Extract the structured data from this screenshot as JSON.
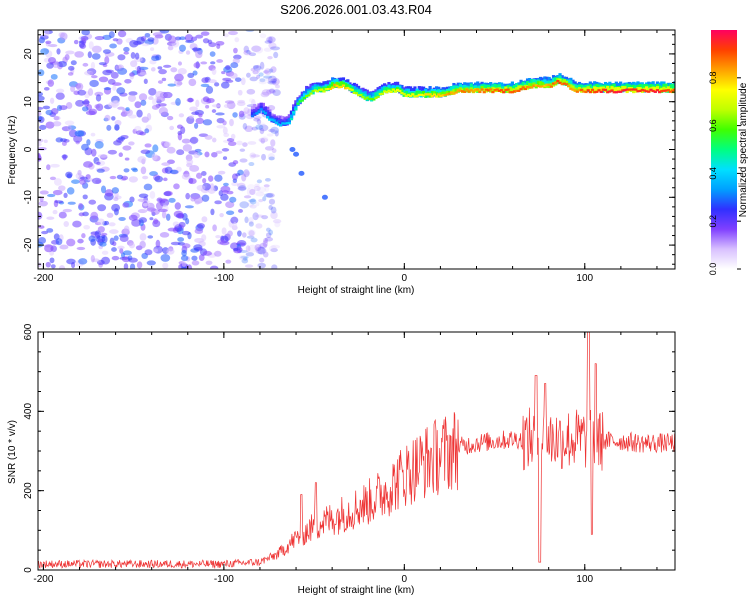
{
  "chart_data": [
    {
      "type": "heatmap",
      "title": "S206.2026.001.03.43.R04",
      "xlabel": "Height of straight line (km)",
      "ylabel": "Frequency (Hz)",
      "xlim": [
        -203,
        150
      ],
      "ylim": [
        -25,
        25
      ],
      "xticks": [
        -200,
        -100,
        0,
        100
      ],
      "yticks": [
        -20,
        -10,
        0,
        10,
        20
      ],
      "colorbar": {
        "label": "Normalized spectral amplitude",
        "range": [
          0.0,
          1.0
        ],
        "ticks": [
          0.0,
          0.2,
          0.4,
          0.6,
          0.8
        ],
        "colors": [
          "#ffffff",
          "#d8c0ff",
          "#8040ff",
          "#3030ff",
          "#00a0ff",
          "#00e0ff",
          "#00ff80",
          "#40ff00",
          "#c0ff00",
          "#ffff00",
          "#ffa000",
          "#ff4000",
          "#ff0060"
        ]
      },
      "noise_region": {
        "x_from": -203,
        "x_to": -80,
        "amplitude": [
          0.05,
          0.3
        ]
      },
      "ridge": {
        "x": [
          -85,
          -80,
          -75,
          -70,
          -65,
          -60,
          -55,
          -50,
          -45,
          -40,
          -35,
          -30,
          -25,
          -20,
          -15,
          -10,
          -5,
          0,
          10,
          20,
          30,
          40,
          50,
          60,
          70,
          75,
          80,
          85,
          90,
          95,
          100,
          110,
          120,
          130,
          140,
          150
        ],
        "freq": [
          7,
          8,
          6,
          5,
          5,
          9,
          11,
          12,
          12,
          13,
          13,
          12,
          11,
          10,
          11,
          12,
          12,
          11,
          11,
          11,
          12,
          12,
          12,
          12,
          13,
          13,
          13,
          14,
          13,
          12,
          12,
          12,
          12,
          12,
          12,
          12
        ],
        "amp": [
          0.3,
          0.35,
          0.4,
          0.35,
          0.4,
          0.5,
          0.6,
          0.65,
          0.7,
          0.8,
          0.8,
          0.7,
          0.65,
          0.6,
          0.65,
          0.7,
          0.75,
          0.7,
          0.75,
          0.8,
          0.85,
          0.85,
          0.9,
          0.9,
          0.85,
          0.8,
          0.85,
          0.9,
          0.85,
          0.85,
          0.9,
          0.95,
          0.95,
          0.95,
          0.95,
          0.9
        ]
      }
    },
    {
      "type": "line",
      "xlabel": "Height of straight line (km)",
      "ylabel": "SNR (10 * v/v)",
      "xlim": [
        -203,
        150
      ],
      "ylim": [
        0,
        600
      ],
      "xticks": [
        -200,
        -100,
        0,
        100
      ],
      "yticks": [
        0,
        200,
        400,
        600
      ],
      "series": [
        {
          "name": "SNR",
          "color": "#ee3333",
          "envelope_x": [
            -203,
            -150,
            -100,
            -80,
            -70,
            -60,
            -50,
            -40,
            -30,
            -20,
            -10,
            0,
            10,
            20,
            30,
            40,
            50,
            60,
            70,
            80,
            90,
            100,
            110,
            120,
            130,
            140,
            150
          ],
          "envelope_baseline": [
            15,
            15,
            15,
            20,
            40,
            80,
            110,
            130,
            150,
            170,
            200,
            240,
            270,
            290,
            310,
            320,
            325,
            330,
            330,
            330,
            330,
            330,
            325,
            325,
            320,
            320,
            320
          ],
          "spikes": [
            {
              "x": -57,
              "value": 190
            },
            {
              "x": -49,
              "value": 220
            },
            {
              "x": 73,
              "value": 490
            },
            {
              "x": 75,
              "value": 20
            },
            {
              "x": 78,
              "value": 470
            },
            {
              "x": 102,
              "value": 600
            },
            {
              "x": 104,
              "value": 90
            },
            {
              "x": 106,
              "value": 520
            }
          ]
        }
      ]
    }
  ]
}
